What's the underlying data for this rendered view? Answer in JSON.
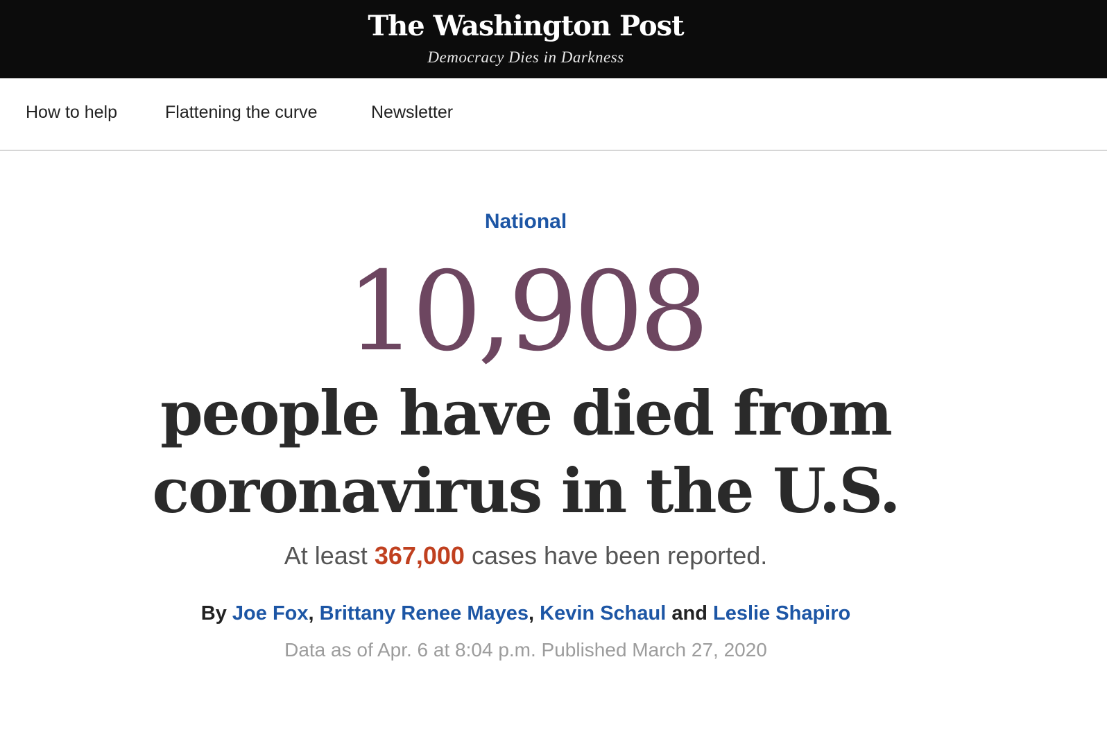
{
  "masthead": {
    "logo_text": "The Washington Post",
    "tagline": "Democracy Dies in Darkness"
  },
  "nav": {
    "items": [
      {
        "label": "How to help"
      },
      {
        "label": "Flattening the curve"
      },
      {
        "label": "Newsletter"
      }
    ]
  },
  "article": {
    "kicker": "National",
    "death_count": "10,908",
    "headline_line1": "people have died from",
    "headline_line2": "coronavirus in the U.S.",
    "subhead_prefix": "At least",
    "cases_count": "367,000",
    "subhead_suffix": "cases have been reported.",
    "byline": {
      "by_label": "By",
      "authors": [
        "Joe Fox",
        "Brittany Renee Mayes",
        "Kevin Schaul",
        "Leslie Shapiro"
      ],
      "separator": ",",
      "conjunction": "and"
    },
    "dateline": "Data as of Apr. 6 at 8:04 p.m. Published March 27, 2020"
  },
  "colors": {
    "masthead_bg": "#0c0c0c",
    "link_blue": "#1d56a5",
    "death_count": "#6d4660",
    "cases_count": "#c0401f"
  }
}
